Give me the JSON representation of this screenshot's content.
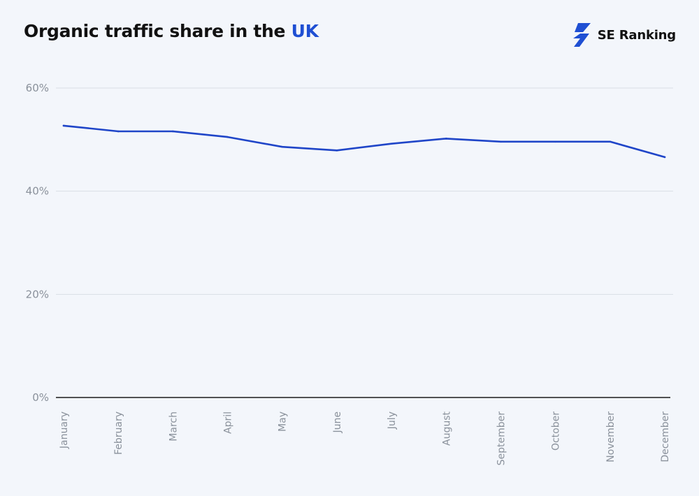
{
  "header": {
    "title_main": "Organic traffic share in the ",
    "title_accent": "UK",
    "brand_name": "SE Ranking",
    "brand_icon": "lightning-bolt-icon",
    "accent_color": "#1f4fd3"
  },
  "chart_data": {
    "type": "line",
    "title": "Organic traffic share in the UK",
    "categories": [
      "January",
      "February",
      "March",
      "April",
      "May",
      "June",
      "July",
      "August",
      "September",
      "October",
      "November",
      "December"
    ],
    "series": [
      {
        "values": [
          52.7,
          51.6,
          51.6,
          50.5,
          48.6,
          47.9,
          49.2,
          50.2,
          49.6,
          49.6,
          49.6,
          46.6
        ],
        "color": "#1f45c8"
      }
    ],
    "yticks": [
      "0%",
      "20%",
      "40%",
      "60%"
    ],
    "ylim": [
      0,
      60
    ],
    "grid": true,
    "legend": "none"
  }
}
